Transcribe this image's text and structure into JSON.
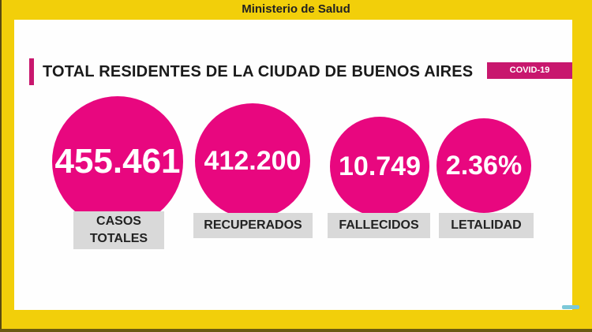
{
  "header": {
    "title": "Ministerio de Salud"
  },
  "main": {
    "title": "TOTAL RESIDENTES DE LA CIUDAD DE BUENOS AIRES",
    "badge": "COVID-19",
    "stats": [
      {
        "value": "455.461",
        "label": "CASOS TOTALES"
      },
      {
        "value": "412.200",
        "label": "RECUPERADOS"
      },
      {
        "value": "10.749",
        "label": "FALLECIDOS"
      },
      {
        "value": "2.36%",
        "label": "LETALIDAD"
      }
    ]
  },
  "colors": {
    "background": "#f2cf0a",
    "accent": "#e8077f",
    "badge": "#c8176e"
  }
}
